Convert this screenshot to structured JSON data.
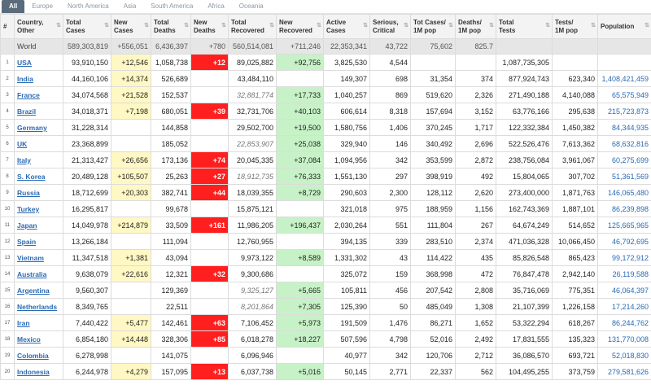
{
  "tabs": [
    "All",
    "Europe",
    "North America",
    "Asia",
    "South America",
    "Africa",
    "Oceania"
  ],
  "headers": [
    "#",
    "Country,\nOther",
    "Total\nCases",
    "New\nCases",
    "Total\nDeaths",
    "New\nDeaths",
    "Total\nRecovered",
    "New\nRecovered",
    "Active\nCases",
    "Serious,\nCritical",
    "Tot Cases/\n1M pop",
    "Deaths/\n1M pop",
    "Total\nTests",
    "Tests/\n1M pop",
    "Population"
  ],
  "world": [
    "",
    "World",
    "589,303,819",
    "+556,051",
    "6,436,397",
    "+780",
    "560,514,081",
    "+711,246",
    "22,353,341",
    "43,722",
    "75,602",
    "825.7",
    "",
    "",
    ""
  ],
  "rows": [
    [
      "1",
      "USA",
      "93,910,150",
      "+12,546",
      "1,058,738",
      "+12",
      "89,025,882",
      "+92,756",
      "3,825,530",
      "4,544",
      "",
      "",
      "1,087,735,305",
      "",
      ""
    ],
    [
      "2",
      "India",
      "44,160,106",
      "+14,374",
      "526,689",
      "",
      "43,484,110",
      "",
      "149,307",
      "698",
      "31,354",
      "374",
      "877,924,743",
      "623,340",
      "1,408,421,459"
    ],
    [
      "3",
      "France",
      "34,074,568",
      "+21,528",
      "152,537",
      "",
      "32,881,774",
      "+17,733",
      "1,040,257",
      "869",
      "519,620",
      "2,326",
      "271,490,188",
      "4,140,088",
      "65,575,949"
    ],
    [
      "4",
      "Brazil",
      "34,018,371",
      "+7,198",
      "680,051",
      "+39",
      "32,731,706",
      "+40,103",
      "606,614",
      "8,318",
      "157,694",
      "3,152",
      "63,776,166",
      "295,638",
      "215,723,873"
    ],
    [
      "5",
      "Germany",
      "31,228,314",
      "",
      "144,858",
      "",
      "29,502,700",
      "+19,500",
      "1,580,756",
      "1,406",
      "370,245",
      "1,717",
      "122,332,384",
      "1,450,382",
      "84,344,935"
    ],
    [
      "6",
      "UK",
      "23,368,899",
      "",
      "185,052",
      "",
      "22,853,907",
      "+25,038",
      "329,940",
      "146",
      "340,492",
      "2,696",
      "522,526,476",
      "7,613,362",
      "68,632,816"
    ],
    [
      "7",
      "Italy",
      "21,313,427",
      "+26,656",
      "173,136",
      "+74",
      "20,045,335",
      "+37,084",
      "1,094,956",
      "342",
      "353,599",
      "2,872",
      "238,756,084",
      "3,961,067",
      "60,275,699"
    ],
    [
      "8",
      "S. Korea",
      "20,489,128",
      "+105,507",
      "25,263",
      "+27",
      "18,912,735",
      "+76,333",
      "1,551,130",
      "297",
      "398,919",
      "492",
      "15,804,065",
      "307,702",
      "51,361,569"
    ],
    [
      "9",
      "Russia",
      "18,712,699",
      "+20,303",
      "382,741",
      "+44",
      "18,039,355",
      "+8,729",
      "290,603",
      "2,300",
      "128,112",
      "2,620",
      "273,400,000",
      "1,871,763",
      "146,065,480"
    ],
    [
      "10",
      "Turkey",
      "16,295,817",
      "",
      "99,678",
      "",
      "15,875,121",
      "",
      "321,018",
      "975",
      "188,959",
      "1,156",
      "162,743,369",
      "1,887,101",
      "86,239,898"
    ],
    [
      "11",
      "Japan",
      "14,049,978",
      "+214,879",
      "33,509",
      "+161",
      "11,986,205",
      "+196,437",
      "2,030,264",
      "551",
      "111,804",
      "267",
      "64,674,249",
      "514,652",
      "125,665,965"
    ],
    [
      "12",
      "Spain",
      "13,266,184",
      "",
      "111,094",
      "",
      "12,760,955",
      "",
      "394,135",
      "339",
      "283,510",
      "2,374",
      "471,036,328",
      "10,066,450",
      "46,792,695"
    ],
    [
      "13",
      "Vietnam",
      "11,347,518",
      "+1,381",
      "43,094",
      "",
      "9,973,122",
      "+8,589",
      "1,331,302",
      "43",
      "114,422",
      "435",
      "85,826,548",
      "865,423",
      "99,172,912"
    ],
    [
      "14",
      "Australia",
      "9,638,079",
      "+22,616",
      "12,321",
      "+32",
      "9,300,686",
      "",
      "325,072",
      "159",
      "368,998",
      "472",
      "76,847,478",
      "2,942,140",
      "26,119,588"
    ],
    [
      "15",
      "Argentina",
      "9,560,307",
      "",
      "129,369",
      "",
      "9,325,127",
      "+5,665",
      "105,811",
      "456",
      "207,542",
      "2,808",
      "35,716,069",
      "775,351",
      "46,064,397"
    ],
    [
      "16",
      "Netherlands",
      "8,349,765",
      "",
      "22,511",
      "",
      "8,201,864",
      "+7,305",
      "125,390",
      "50",
      "485,049",
      "1,308",
      "21,107,399",
      "1,226,158",
      "17,214,260"
    ],
    [
      "17",
      "Iran",
      "7,440,422",
      "+5,477",
      "142,461",
      "+63",
      "7,106,452",
      "+5,973",
      "191,509",
      "1,476",
      "86,271",
      "1,652",
      "53,322,294",
      "618,267",
      "86,244,762"
    ],
    [
      "18",
      "Mexico",
      "6,854,180",
      "+14,448",
      "328,306",
      "+85",
      "6,018,278",
      "+18,227",
      "507,596",
      "4,798",
      "52,016",
      "2,492",
      "17,831,555",
      "135,323",
      "131,770,008"
    ],
    [
      "19",
      "Colombia",
      "6,278,998",
      "",
      "141,075",
      "",
      "6,096,946",
      "",
      "40,977",
      "342",
      "120,706",
      "2,712",
      "36,086,570",
      "693,721",
      "52,018,830"
    ],
    [
      "20",
      "Indonesia",
      "6,244,978",
      "+4,279",
      "157,095",
      "+13",
      "6,037,738",
      "+5,016",
      "50,145",
      "2,771",
      "22,337",
      "562",
      "104,495,255",
      "373,759",
      "279,581,626"
    ]
  ],
  "italic_recovered_rows": [
    3,
    6,
    8,
    15,
    16
  ]
}
